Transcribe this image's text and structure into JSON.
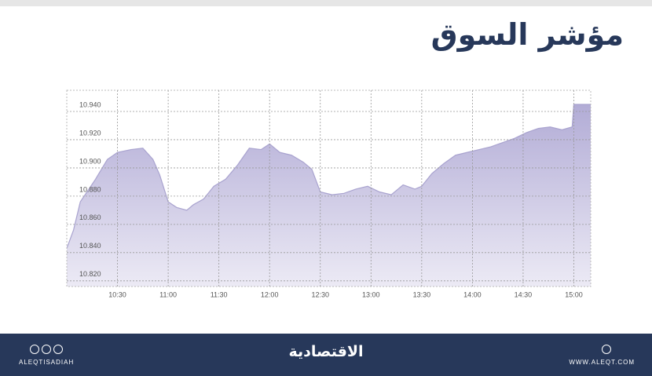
{
  "chart_data": {
    "type": "area",
    "title": "مؤشر السوق",
    "x": [
      "10:00",
      "10:04",
      "10:08",
      "10:12",
      "10:17",
      "10:24",
      "10:30",
      "10:38",
      "10:45",
      "10:51",
      "10:55",
      "11:00",
      "11:05",
      "11:11",
      "11:15",
      "11:21",
      "11:27",
      "11:34",
      "11:41",
      "11:48",
      "11:55",
      "12:00",
      "12:06",
      "12:13",
      "12:20",
      "12:25",
      "12:30",
      "12:37",
      "12:44",
      "12:51",
      "12:58",
      "13:05",
      "13:12",
      "13:19",
      "13:26",
      "13:30",
      "13:36",
      "13:43",
      "13:50",
      "13:57",
      "14:04",
      "14:11",
      "14:18",
      "14:25",
      "14:32",
      "14:39",
      "14:46",
      "14:53",
      "14:59",
      "15:00",
      "15:10"
    ],
    "values": [
      10.843,
      10.856,
      10.876,
      10.883,
      10.892,
      10.906,
      10.911,
      10.913,
      10.914,
      10.906,
      10.895,
      10.876,
      10.872,
      10.87,
      10.874,
      10.878,
      10.887,
      10.892,
      10.902,
      10.914,
      10.913,
      10.917,
      10.911,
      10.909,
      10.904,
      10.899,
      10.883,
      10.881,
      10.882,
      10.885,
      10.887,
      10.883,
      10.881,
      10.888,
      10.885,
      10.887,
      10.896,
      10.903,
      10.909,
      10.911,
      10.913,
      10.915,
      10.918,
      10.921,
      10.925,
      10.928,
      10.929,
      10.927,
      10.929,
      10.945,
      10.945
    ],
    "xlim": [
      "10:00",
      "15:10"
    ],
    "xticks": [
      "10:30",
      "11:00",
      "11:30",
      "12:00",
      "12:30",
      "13:00",
      "13:30",
      "14:00",
      "14:30",
      "15:00"
    ],
    "ylim": [
      10.816,
      10.955
    ],
    "yticks": [
      {
        "value": 10.82,
        "label": "10.820"
      },
      {
        "value": 10.84,
        "label": "10.840"
      },
      {
        "value": 10.86,
        "label": "10.860"
      },
      {
        "value": 10.88,
        "label": "10.880"
      },
      {
        "value": 10.9,
        "label": "10.900"
      },
      {
        "value": 10.92,
        "label": "10.920"
      },
      {
        "value": 10.94,
        "label": "10.940"
      }
    ],
    "color": "#a9a3cf",
    "grid": true
  },
  "footer": {
    "left": "ALEQTISADIAH",
    "center": "الاقتصادية",
    "right": "WWW.ALEQT.COM"
  }
}
